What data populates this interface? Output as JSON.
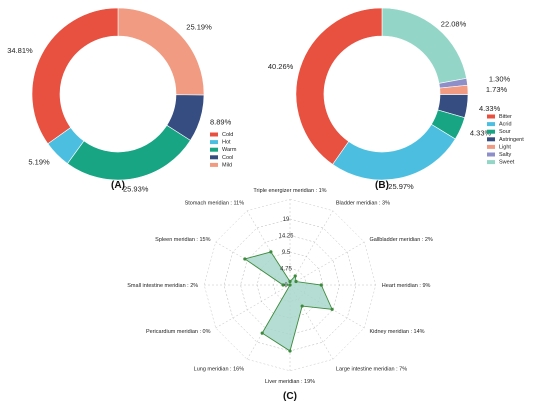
{
  "panels": {
    "a": "(A)",
    "b": "(B)",
    "c": "(C)"
  },
  "chart_data": [
    {
      "type": "pie",
      "panel": "(A)",
      "start_angle_deg": 0,
      "legend_position": "bottom-right",
      "series": [
        {
          "name": "Cold",
          "value": 34.81,
          "label": "34.81%",
          "color": "#e8503f"
        },
        {
          "name": "Hot",
          "value": 5.19,
          "label": "5.19%",
          "color": "#4cbfe0"
        },
        {
          "name": "Warm",
          "value": 25.93,
          "label": "25.93%",
          "color": "#18a584"
        },
        {
          "name": "Cool",
          "value": 8.89,
          "label": "8.89%",
          "color": "#364d82"
        },
        {
          "name": "Mild",
          "value": 25.19,
          "label": "25.19%",
          "color": "#f19b82"
        }
      ],
      "draw_order": [
        "Mild",
        "Cool",
        "Warm",
        "Hot",
        "Cold"
      ]
    },
    {
      "type": "pie",
      "panel": "(B)",
      "legend_position": "right",
      "series": [
        {
          "name": "Bitter",
          "value": 40.26,
          "label": "40.26%",
          "color": "#e8503f"
        },
        {
          "name": "Acrid",
          "value": 25.97,
          "label": "25.97%",
          "color": "#4cbfe0"
        },
        {
          "name": "Sour",
          "value": 4.33,
          "label": "4.33%",
          "color": "#18a584"
        },
        {
          "name": "Astringent",
          "value": 4.33,
          "label": "4.33%",
          "color": "#364d82"
        },
        {
          "name": "Light",
          "value": 1.73,
          "label": "1.73%",
          "color": "#f19b82"
        },
        {
          "name": "Salty",
          "value": 1.3,
          "label": "1.30%",
          "color": "#8e8fc9"
        },
        {
          "name": "Sweet",
          "value": 22.08,
          "label": "22.08%",
          "color": "#93d6c7"
        }
      ],
      "draw_order": [
        "Sweet",
        "Salty",
        "Light",
        "Astringent",
        "Sour",
        "Acrid",
        "Bitter"
      ]
    },
    {
      "type": "radar",
      "panel": "(C)",
      "rmax": 19,
      "ticks": [
        "0",
        "4.75",
        "9.5",
        "14.25",
        "19"
      ],
      "tick_values": [
        0,
        4.75,
        9.5,
        14.25,
        19
      ],
      "fill_color": "#a9d7cb",
      "line_color": "#3c8a3c",
      "categories": [
        {
          "label": "Triple energizer meridian : 1%",
          "value": 1
        },
        {
          "label": "Bladder meridian : 3%",
          "value": 3
        },
        {
          "label": "Gallbladder meridian : 2%",
          "value": 2
        },
        {
          "label": "Heart meridian : 9%",
          "value": 9
        },
        {
          "label": "Kidney meridian : 14%",
          "value": 14
        },
        {
          "label": "Large intestine meridian : 7%",
          "value": 7
        },
        {
          "label": "Liver meridian : 19%",
          "value": 19
        },
        {
          "label": "Lung meridian : 16%",
          "value": 16
        },
        {
          "label": "Pericardium meridian : 0%",
          "value": 0
        },
        {
          "label": "Small intestine meridian : 2%",
          "value": 2
        },
        {
          "label": "Spleen meridian : 15%",
          "value": 15
        },
        {
          "label": "Stomach meridian : 11%",
          "value": 11
        }
      ]
    }
  ]
}
